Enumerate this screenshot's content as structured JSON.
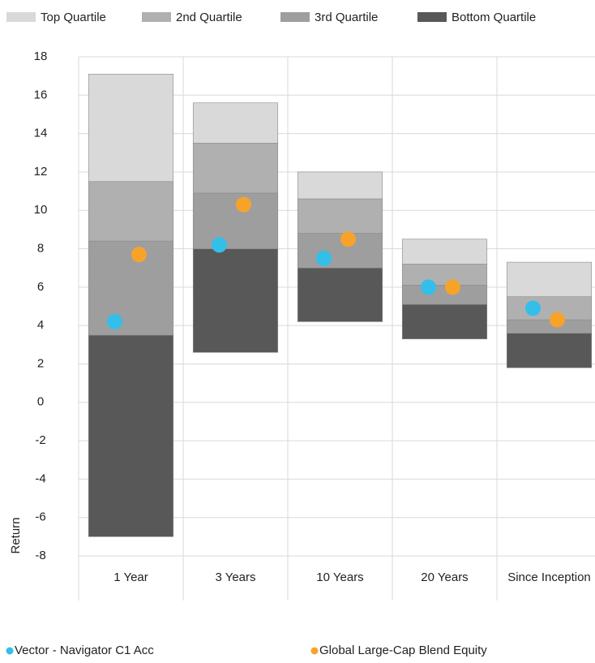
{
  "chart_data": {
    "type": "floating-stacked-bar",
    "y_label": "Return",
    "categories": [
      "1 Year",
      "3 Years",
      "10 Years",
      "20 Years",
      "Since Inception"
    ],
    "series": [
      {
        "name": "Top Quartile",
        "color": "#d9d9d9",
        "values": [
          [
            11.5,
            17.1
          ],
          [
            13.5,
            15.6
          ],
          [
            10.6,
            12.0
          ],
          [
            7.2,
            8.5
          ],
          [
            5.5,
            7.3
          ]
        ]
      },
      {
        "name": "2nd Quartile",
        "color": "#b0b0b0",
        "values": [
          [
            8.4,
            11.5
          ],
          [
            10.9,
            13.5
          ],
          [
            8.8,
            10.6
          ],
          [
            6.1,
            7.2
          ],
          [
            4.3,
            5.5
          ]
        ]
      },
      {
        "name": "3rd Quartile",
        "color": "#9e9e9e",
        "values": [
          [
            3.5,
            8.4
          ],
          [
            8.0,
            10.9
          ],
          [
            7.0,
            8.8
          ],
          [
            5.1,
            6.1
          ],
          [
            3.6,
            4.3
          ]
        ]
      },
      {
        "name": "Bottom Quartile",
        "color": "#585858",
        "values": [
          [
            -7.0,
            3.5
          ],
          [
            2.6,
            8.0
          ],
          [
            4.2,
            7.0
          ],
          [
            3.3,
            5.1
          ],
          [
            1.8,
            3.6
          ]
        ]
      }
    ],
    "points": [
      {
        "name": "Vector - Navigator C1 Acc",
        "color": "#33bfea",
        "values": [
          4.2,
          8.2,
          7.5,
          6.0,
          4.9
        ]
      },
      {
        "name": "Global Large-Cap Blend Equity",
        "color": "#f7a32a",
        "values": [
          7.7,
          10.3,
          8.5,
          6.0,
          4.3
        ]
      }
    ],
    "ylim": [
      -8,
      18
    ],
    "yticks": [
      -8,
      -6,
      -4,
      -2,
      0,
      2,
      4,
      6,
      8,
      10,
      12,
      14,
      16,
      18
    ],
    "grid": true
  }
}
